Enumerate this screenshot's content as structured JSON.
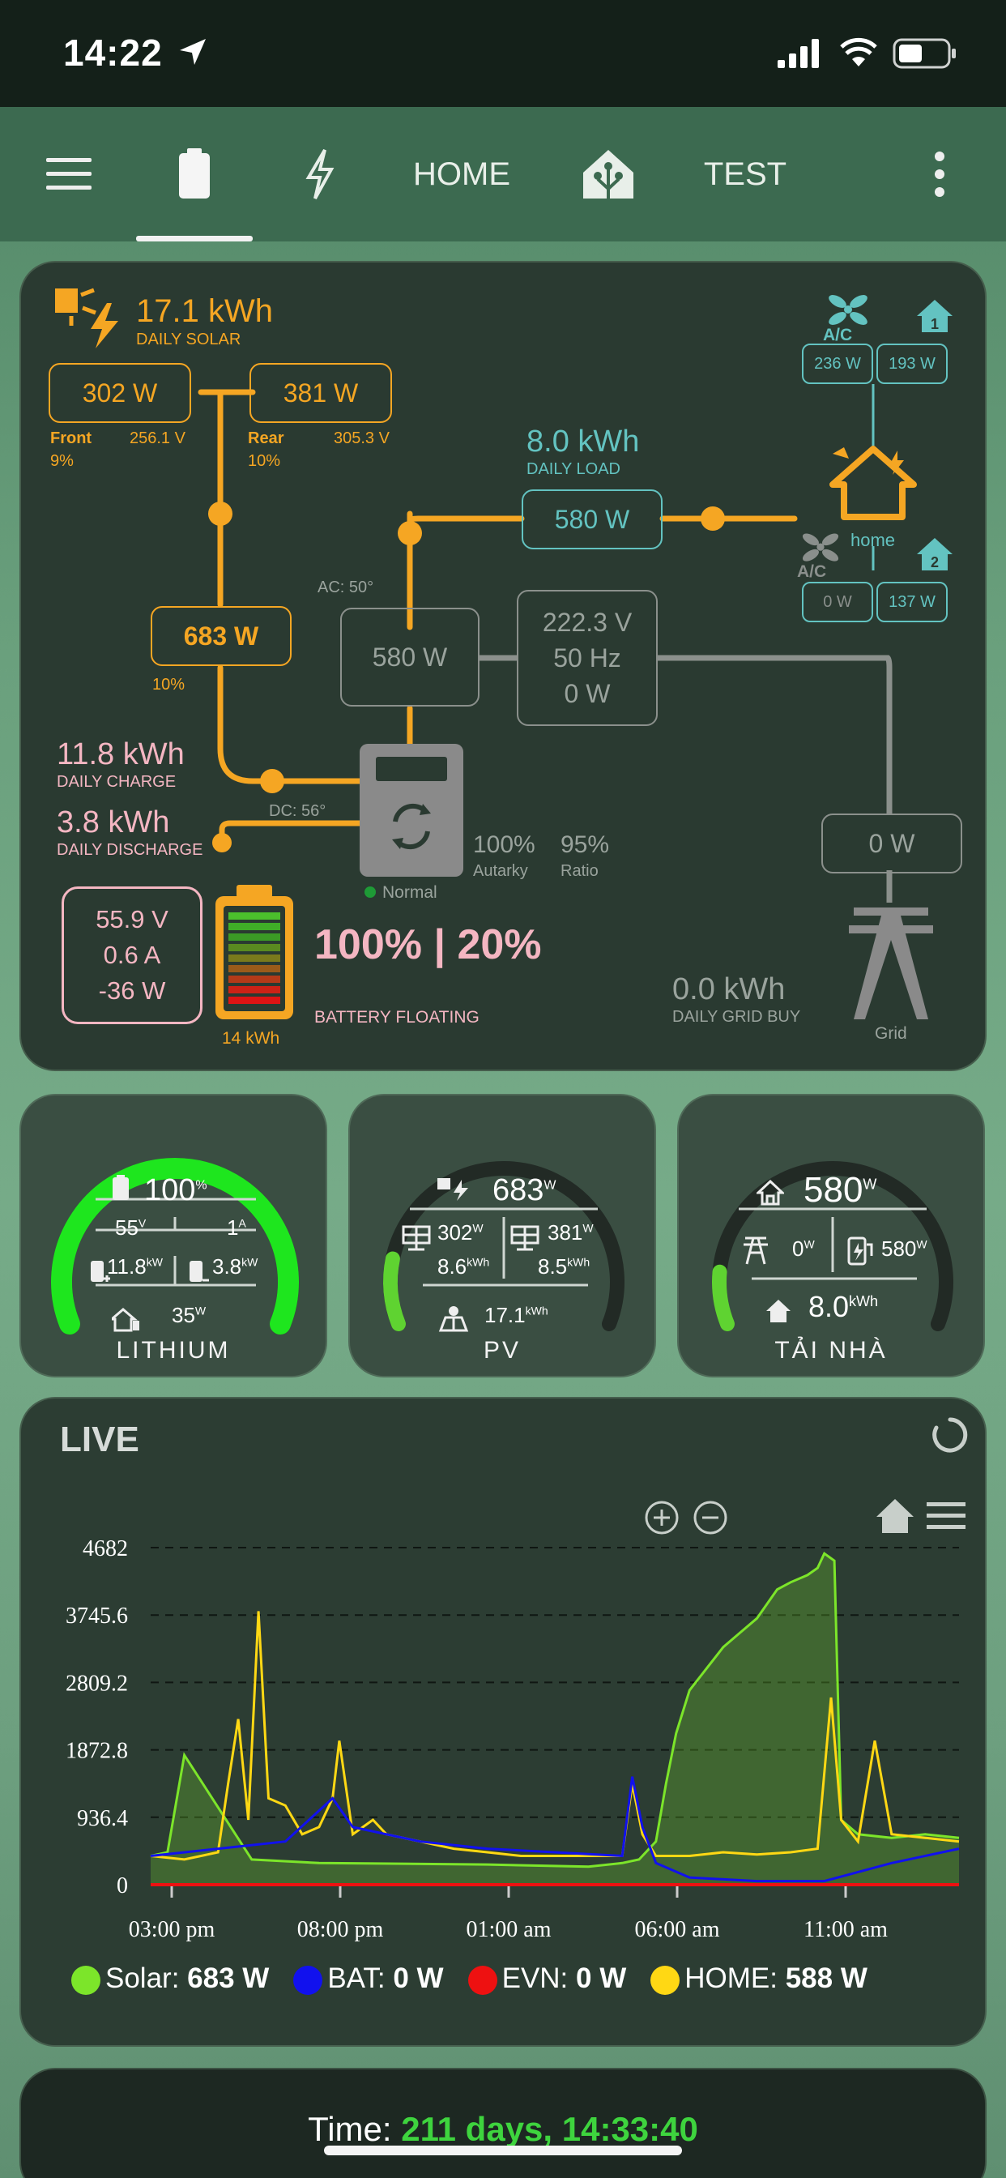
{
  "status_bar": {
    "time": "14:22"
  },
  "nav": {
    "tabs": [
      "battery",
      "lightning",
      "HOME",
      "home-assistant",
      "TEST"
    ],
    "home_label": "HOME",
    "test_label": "TEST"
  },
  "flow": {
    "daily_solar": {
      "value": "17.1 kWh",
      "label": "DAILY SOLAR"
    },
    "pv_front": {
      "power": "302 W",
      "name": "Front",
      "voltage": "256.1 V",
      "pct": "9%"
    },
    "pv_rear": {
      "power": "381 W",
      "name": "Rear",
      "voltage": "305.3 V",
      "pct": "10%"
    },
    "pv_total": {
      "power": "683 W",
      "pct": "10%"
    },
    "daily_load": {
      "value": "8.0 kWh",
      "label": "DAILY LOAD"
    },
    "load_power": "580 W",
    "ac_temp": "AC: 50°",
    "dc_temp": "DC: 56°",
    "inverter_power": "580 W",
    "inverter_stats": {
      "voltage": "222.3 V",
      "freq": "50 Hz",
      "power": "0 W"
    },
    "daily_charge": {
      "value": "11.8 kWh",
      "label": "DAILY CHARGE"
    },
    "daily_discharge": {
      "value": "3.8 kWh",
      "label": "DAILY DISCHARGE"
    },
    "inverter_status": "Normal",
    "autarky": {
      "value": "100%",
      "label": "Autarky"
    },
    "ratio": {
      "value": "95%",
      "label": "Ratio"
    },
    "battery_stats": {
      "voltage": "55.9 V",
      "current": "0.6 A",
      "power": "-36 W"
    },
    "battery_capacity": "14 kWh",
    "battery_soc": "100% | 20%",
    "battery_state": "BATTERY FLOATING",
    "grid_power": "0 W",
    "daily_grid_buy": {
      "value": "0.0 kWh",
      "label": "DAILY GRID BUY"
    },
    "grid_label": "Grid",
    "loads_top": {
      "ac": "236 W",
      "load1": "193 W"
    },
    "loads_bottom": {
      "ac": "0 W",
      "load2": "137 W"
    },
    "home_label": "home",
    "ac_label": "A/C"
  },
  "gauges": {
    "lithium": {
      "label": "LITHIUM",
      "soc": "100",
      "soc_unit": "%",
      "voltage": "55",
      "voltage_unit": "V",
      "current": "1",
      "current_unit": "A",
      "charge": "11.8",
      "charge_unit": "kW",
      "discharge": "3.8",
      "discharge_unit": "kW",
      "load": "35",
      "load_unit": "W",
      "level": 1.0
    },
    "pv": {
      "label": "PV",
      "total": "683",
      "total_unit": "W",
      "pv1": "302",
      "pv1_unit": "W",
      "pv2": "381",
      "pv2_unit": "W",
      "pv1_energy": "8.6",
      "pv1_energy_unit": "kWh",
      "pv2_energy": "8.5",
      "pv2_energy_unit": "kWh",
      "daily": "17.1",
      "daily_unit": "kWh",
      "level": 0.15
    },
    "home": {
      "label": "TẢI NHÀ",
      "load": "580",
      "load_unit": "W",
      "grid": "0",
      "grid_unit": "W",
      "inverter": "580",
      "inverter_unit": "W",
      "daily": "8.0",
      "daily_unit": "kWh",
      "level": 0.12
    }
  },
  "live": {
    "title": "LIVE",
    "legend": [
      {
        "name": "Solar:",
        "value": "683 W",
        "color": "#7ce52a"
      },
      {
        "name": "BAT:",
        "value": "0 W",
        "color": "#1111ee"
      },
      {
        "name": "EVN:",
        "value": "0 W",
        "color": "#ee1111"
      },
      {
        "name": "HOME:",
        "value": "588 W",
        "color": "#ffd814"
      }
    ]
  },
  "chart_data": {
    "type": "line",
    "y_ticks": [
      "4682",
      "3745.6",
      "2809.2",
      "1872.8",
      "936.4",
      "0"
    ],
    "x_ticks": [
      "03:00 pm",
      "08:00 pm",
      "01:00 am",
      "06:00 am",
      "11:00 am"
    ],
    "ylim": [
      0,
      4682
    ],
    "grid": true,
    "series": [
      {
        "name": "Solar",
        "color": "#7ce52a",
        "x": [
          0,
          0.5,
          1,
          3,
          5,
          10,
          13,
          14,
          14.5,
          15,
          15.3,
          15.6,
          16,
          16.5,
          17,
          17.5,
          18,
          18.3,
          18.6,
          19,
          19.5,
          19.8,
          20,
          20.3,
          20.5,
          21,
          22,
          23,
          24
        ],
        "y": [
          400,
          450,
          1800,
          350,
          300,
          280,
          250,
          300,
          350,
          600,
          1400,
          2100,
          2700,
          3000,
          3300,
          3500,
          3700,
          3900,
          4100,
          4200,
          4300,
          4400,
          4600,
          4500,
          900,
          700,
          650,
          700,
          650
        ]
      },
      {
        "name": "HOME",
        "color": "#ffd814",
        "x": [
          0,
          1,
          2,
          2.3,
          2.6,
          2.9,
          3.2,
          3.5,
          4,
          4.5,
          5,
          5.4,
          5.6,
          6,
          6.6,
          7,
          8,
          9,
          10,
          11,
          12,
          14,
          14.3,
          14.6,
          15,
          16,
          17,
          18,
          19,
          19.8,
          20.2,
          20.5,
          21,
          21.5,
          22,
          23,
          24
        ],
        "y": [
          400,
          350,
          450,
          1400,
          2300,
          900,
          3800,
          1200,
          1100,
          700,
          800,
          1200,
          2000,
          700,
          900,
          700,
          600,
          500,
          450,
          400,
          400,
          400,
          1400,
          700,
          400,
          400,
          450,
          420,
          450,
          500,
          2600,
          900,
          600,
          2000,
          700,
          650,
          600
        ]
      },
      {
        "name": "BAT",
        "color": "#1111ee",
        "x": [
          0,
          2,
          4,
          5.4,
          6,
          8,
          10,
          12,
          14,
          14.3,
          14.6,
          15,
          16,
          18,
          20,
          22,
          24
        ],
        "y": [
          400,
          500,
          600,
          1200,
          800,
          600,
          500,
          450,
          400,
          1500,
          800,
          300,
          100,
          50,
          50,
          300,
          500
        ]
      },
      {
        "name": "EVN",
        "color": "#ee1111",
        "x": [
          0,
          24
        ],
        "y": [
          0,
          0
        ]
      }
    ]
  },
  "footer": {
    "prefix": "Time: ",
    "value": "211 days, 14:33:40"
  }
}
